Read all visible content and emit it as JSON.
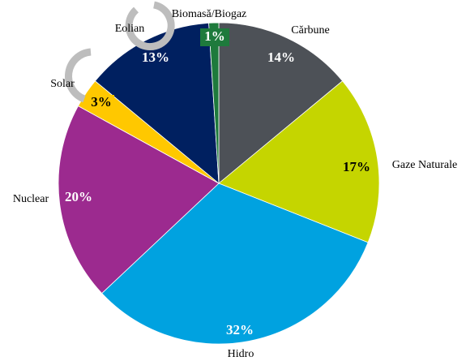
{
  "chart_data": {
    "type": "pie",
    "categories": [
      "Cărbune",
      "Gaze Naturale",
      "Hidro",
      "Nuclear",
      "Solar",
      "Eolian",
      "Biomasă/Biogaz"
    ],
    "values": [
      14,
      17,
      32,
      20,
      3,
      13,
      1
    ],
    "value_labels": [
      "14%",
      "17%",
      "32%",
      "20%",
      "3%",
      "13%",
      "1%"
    ],
    "colors": [
      "#4d5157",
      "#c5d500",
      "#00a2e0",
      "#9c2a8f",
      "#ffc800",
      "#002060",
      "#1e7a3c"
    ]
  }
}
